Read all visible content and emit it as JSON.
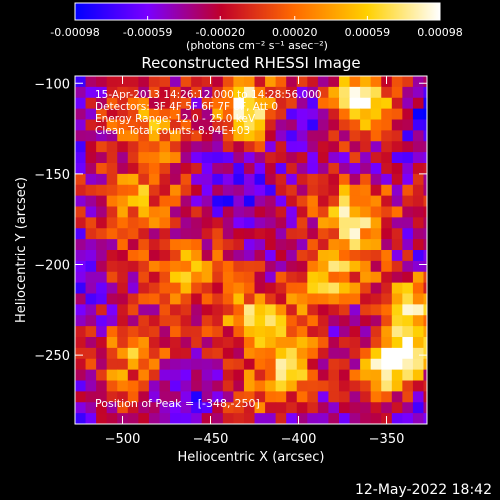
{
  "chart_data": {
    "type": "heatmap",
    "title": "Reconstructed RHESSI Image",
    "xlabel": "Heliocentric X (arcsec)",
    "ylabel": "Heliocentric Y (arcsec)",
    "xlim": [
      -527,
      -327
    ],
    "ylim": [
      -288,
      -96
    ],
    "xticks": [
      -500,
      -450,
      -400,
      -350
    ],
    "yticks": [
      -100,
      -150,
      -200,
      -250
    ],
    "colorbar": {
      "ticks": [
        -0.00098,
        -0.00059,
        -0.0002,
        0.0002,
        0.00059,
        0.00098
      ],
      "tick_labels": [
        "-0.00098",
        "-0.00059",
        "-0.00020",
        "0.00020",
        "0.00059",
        "0.00098"
      ],
      "unit_label": "(photons cm⁻² s⁻¹ asec⁻²)",
      "range": [
        -0.00098,
        0.00098
      ],
      "colors": [
        "#0000ff",
        "#7a00ff",
        "#c0002a",
        "#ff6a00",
        "#ffd000",
        "#ffffff"
      ]
    },
    "annotations": [
      "15-Apr-2013 14:26:12.000 to 14:28:56.000",
      "Detectors: 3F 4F 5F 6F 7F 8F, Att 0",
      "Energy Range: 12.0 - 25.0 keV",
      "Clean     Total counts: 8.94E+03"
    ],
    "peak_label": "Position of Peak = [-348,-250]",
    "peak": {
      "x": -348,
      "y": -250
    },
    "hotspots": [
      {
        "x": -348,
        "y": -250,
        "value": 0.00098
      },
      {
        "x": -370,
        "y": -168,
        "value": 0.00085
      },
      {
        "x": -368,
        "y": -105,
        "value": 0.0007
      },
      {
        "x": -430,
        "y": -110,
        "value": 0.0006
      },
      {
        "x": -470,
        "y": -200,
        "value": 0.00065
      },
      {
        "x": -430,
        "y": -230,
        "value": 0.0007
      },
      {
        "x": -410,
        "y": -260,
        "value": 0.0005
      },
      {
        "x": -500,
        "y": -160,
        "value": 0.0005
      },
      {
        "x": -500,
        "y": -245,
        "value": 0.00045
      },
      {
        "x": -480,
        "y": -120,
        "value": 0.0004
      },
      {
        "x": -390,
        "y": -205,
        "value": 0.0005
      },
      {
        "x": -335,
        "y": -215,
        "value": 0.00045
      }
    ]
  },
  "footer": {
    "timestamp": "12-May-2022 18:42"
  }
}
